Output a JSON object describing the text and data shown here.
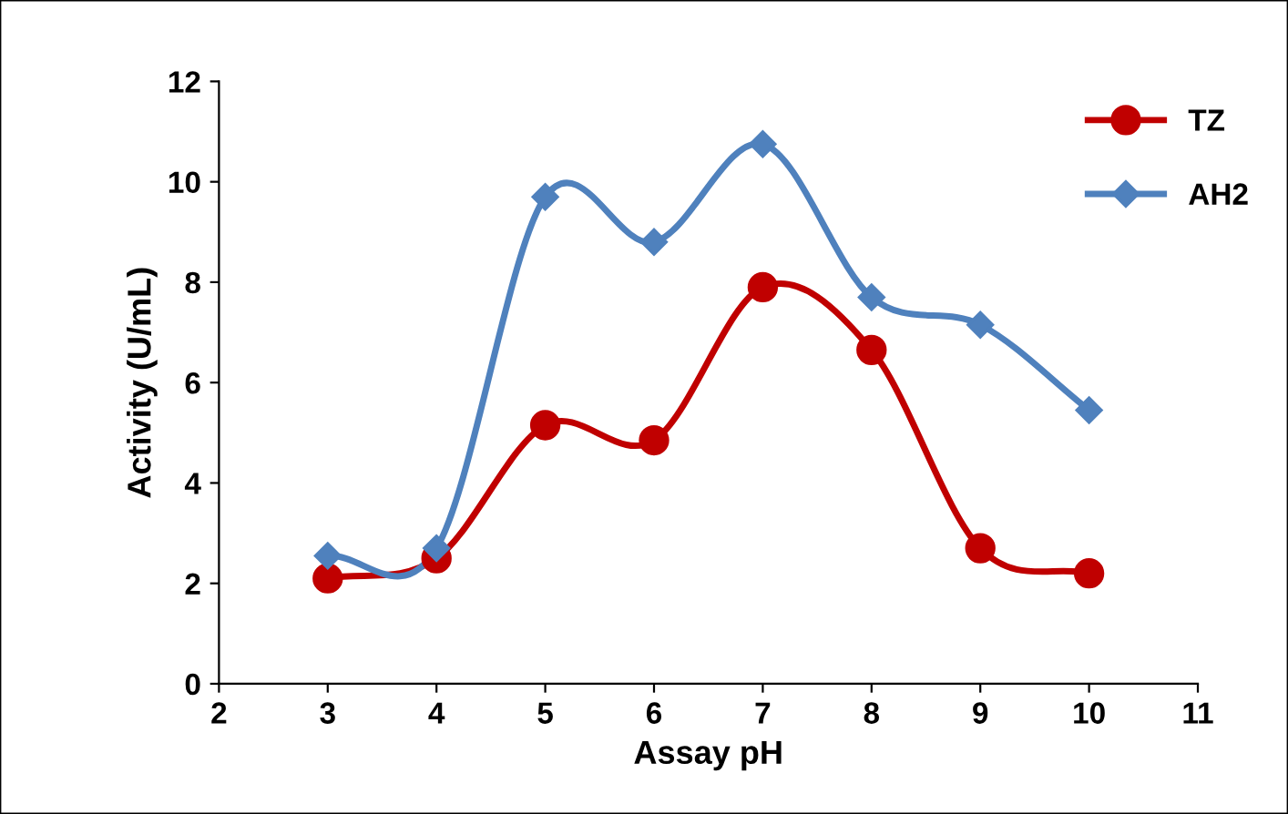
{
  "chart_data": {
    "type": "line",
    "xlabel": "Assay pH",
    "ylabel": "Activity (U/mL)",
    "x": [
      3,
      4,
      5,
      6,
      7,
      8,
      9,
      10
    ],
    "series": [
      {
        "name": "TZ",
        "color": "#c00000",
        "marker": "circle",
        "values": [
          2.1,
          2.5,
          5.15,
          4.85,
          7.9,
          6.65,
          2.7,
          2.2
        ]
      },
      {
        "name": "AH2",
        "color": "#4f81bd",
        "marker": "diamond",
        "values": [
          2.55,
          2.7,
          9.7,
          8.8,
          10.75,
          7.7,
          7.15,
          5.45
        ]
      }
    ],
    "xlim": [
      2,
      11
    ],
    "xticks": [
      2,
      3,
      4,
      5,
      6,
      7,
      8,
      9,
      10,
      11
    ],
    "ylim": [
      0,
      12
    ],
    "yticks": [
      0,
      2,
      4,
      6,
      8,
      10,
      12
    ],
    "grid": false,
    "legend": "top right",
    "line_style": "solid"
  }
}
